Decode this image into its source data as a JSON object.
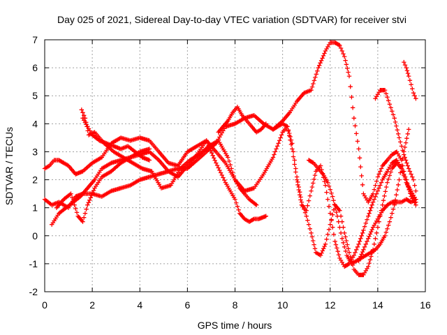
{
  "chart_data": {
    "type": "scatter",
    "title": "Day 025 of 2021, Sidereal Day-to-day VTEC variation (SDTVAR) for receiver stvi",
    "xlabel": "GPS time / hours",
    "ylabel": "SDTVAR / TECUs",
    "xlim": [
      0,
      16
    ],
    "ylim": [
      -2,
      7
    ],
    "x_ticks": [
      0,
      2,
      4,
      6,
      8,
      10,
      12,
      14,
      16
    ],
    "y_ticks": [
      -2,
      -1,
      0,
      1,
      2,
      3,
      4,
      5,
      6,
      7
    ],
    "x_tick_labels": [
      "0",
      "2",
      "4",
      "6",
      "8",
      "10",
      "12",
      "14",
      "16"
    ],
    "y_tick_labels": [
      "-2",
      "-1",
      "0",
      "1",
      "2",
      "3",
      "4",
      "5",
      "6",
      "7"
    ],
    "grid": true,
    "marker": "plus",
    "color": "#ff0000",
    "series": [
      {
        "x": [
          0.0,
          0.3,
          0.6,
          1.0,
          1.3,
          1.6,
          2.0,
          2.4,
          2.8,
          3.2,
          3.6,
          4.0,
          4.4,
          4.8,
          5.2,
          5.6,
          6.0,
          6.4,
          6.8,
          7.2,
          7.6,
          8.0,
          8.4,
          8.8,
          9.2,
          9.6,
          10.0,
          10.3,
          10.6,
          10.9,
          11.2,
          11.5,
          11.8,
          12.0,
          12.2,
          12.4,
          12.6,
          12.8,
          13.0,
          13.2,
          13.4,
          13.6,
          13.8,
          14.0,
          14.2,
          14.4,
          14.6,
          14.8,
          15.0,
          15.2,
          15.4,
          15.6
        ],
        "y": [
          1.3,
          1.1,
          1.2,
          1.0,
          1.4,
          1.5,
          1.5,
          1.4,
          1.6,
          1.7,
          1.8,
          2.0,
          2.1,
          2.2,
          2.3,
          2.4,
          2.4,
          2.7,
          3.0,
          3.3,
          3.9,
          4.0,
          4.2,
          4.3,
          4.0,
          3.8,
          4.1,
          4.4,
          4.8,
          5.1,
          5.2,
          6.0,
          6.6,
          6.9,
          6.9,
          6.8,
          6.4,
          5.7,
          4.2,
          3.1,
          1.5,
          1.2,
          1.5,
          2.1,
          2.5,
          2.7,
          2.9,
          3.0,
          2.7,
          1.9,
          1.6,
          1.3
        ]
      },
      {
        "x": [
          0.0,
          0.2,
          0.4,
          0.6,
          0.8,
          1.0,
          1.3,
          1.6,
          2.0,
          2.4,
          2.8,
          3.2,
          3.6,
          4.0,
          4.4,
          4.8,
          5.2,
          5.6,
          6.0,
          6.4,
          6.8,
          7.2,
          7.6,
          8.0,
          8.4,
          8.8,
          9.2,
          9.6,
          10.0,
          10.2,
          10.4,
          10.6,
          10.8,
          11.0,
          11.2,
          11.4,
          11.6,
          11.8,
          12.0,
          12.2,
          12.4,
          12.6,
          12.8,
          13.0,
          13.2,
          13.4,
          13.6,
          13.8,
          14.0,
          14.2,
          14.4,
          14.6,
          14.8,
          15.0,
          15.2,
          15.4,
          15.6
        ],
        "y": [
          2.4,
          2.5,
          2.7,
          2.7,
          2.6,
          2.5,
          2.2,
          2.3,
          2.6,
          2.8,
          3.3,
          3.5,
          3.4,
          3.5,
          3.4,
          3.0,
          2.6,
          2.5,
          3.0,
          3.2,
          3.4,
          3.0,
          2.6,
          2.0,
          1.6,
          1.7,
          2.2,
          2.8,
          3.7,
          3.9,
          3.3,
          2.1,
          1.2,
          0.7,
          0.1,
          -0.6,
          -0.7,
          -0.3,
          0.4,
          1.1,
          0.9,
          0.1,
          -0.6,
          -1.2,
          -1.4,
          -1.4,
          -1.1,
          -0.5,
          0.3,
          1.1,
          1.9,
          2.4,
          2.6,
          2.4,
          2.0,
          1.4,
          1.1
        ]
      },
      {
        "x": [
          0.3,
          0.6,
          0.9,
          1.2,
          1.5,
          1.8,
          2.1,
          2.4,
          2.8,
          3.2,
          3.6,
          4.0,
          4.4,
          4.8,
          5.2,
          5.6,
          6.0,
          6.4,
          6.8,
          7.2,
          7.6,
          8.0,
          8.2,
          8.4,
          8.6,
          8.8,
          9.0,
          9.3
        ],
        "y": [
          0.4,
          0.8,
          1.0,
          1.2,
          1.4,
          1.7,
          2.0,
          2.4,
          2.6,
          2.7,
          2.8,
          2.9,
          3.0,
          2.7,
          2.3,
          2.1,
          2.5,
          2.9,
          3.4,
          2.6,
          1.9,
          1.3,
          0.8,
          0.6,
          0.5,
          0.6,
          0.6,
          0.7
        ]
      },
      {
        "x": [
          1.55,
          1.7,
          1.85,
          2.1,
          2.5,
          2.9,
          3.3,
          3.7,
          4.1,
          4.5,
          4.9,
          5.3,
          5.7,
          6.1,
          6.5,
          6.9,
          7.3,
          7.7,
          8.0,
          8.2,
          8.4,
          8.6,
          8.9
        ],
        "y": [
          4.5,
          4.2,
          3.6,
          3.7,
          3.3,
          3.0,
          2.8,
          2.6,
          2.4,
          2.3,
          1.7,
          1.8,
          2.4,
          2.7,
          2.9,
          3.2,
          3.4,
          2.8,
          2.0,
          1.7,
          1.5,
          1.3,
          1.1
        ]
      },
      {
        "x": [
          0.5,
          0.8,
          1.1,
          1.4,
          1.6,
          1.8,
          2.1,
          2.4,
          2.8,
          3.2,
          3.6,
          4.0,
          4.4
        ],
        "y": [
          1.0,
          1.3,
          1.5,
          0.7,
          0.5,
          1.1,
          1.7,
          2.1,
          2.3,
          2.6,
          2.8,
          3.0,
          3.1
        ]
      },
      {
        "x": [
          9.6,
          9.8,
          10.0,
          10.2,
          10.4,
          10.6,
          10.8,
          11.0,
          11.2,
          11.4,
          11.6,
          11.8,
          12.0,
          12.2,
          12.4,
          12.6,
          12.8,
          13.0,
          13.2,
          13.4,
          13.6,
          13.8,
          14.0,
          14.2,
          14.4,
          14.6,
          14.8,
          15.0,
          15.2,
          15.4,
          15.6
        ],
        "y": [
          3.8,
          3.9,
          4.0,
          3.9,
          3.1,
          2.0,
          1.1,
          0.9,
          1.6,
          2.3,
          2.5,
          1.8,
          0.8,
          -0.2,
          -0.8,
          -1.1,
          -1.0,
          -0.7,
          -0.3,
          0.2,
          0.7,
          1.2,
          1.6,
          2.0,
          2.3,
          2.6,
          2.7,
          2.4,
          1.9,
          1.5,
          1.2
        ]
      },
      {
        "x": [
          11.1,
          11.3,
          11.5,
          11.7,
          11.9,
          12.1,
          12.3,
          12.5,
          12.7,
          12.9,
          13.1,
          13.3,
          13.5,
          13.7,
          13.9,
          14.1,
          14.3,
          14.5,
          14.7,
          14.9,
          15.1,
          15.3
        ],
        "y": [
          2.7,
          2.6,
          2.4,
          2.2,
          1.9,
          1.4,
          0.7,
          -0.1,
          -0.7,
          -1.0,
          -0.9,
          -0.8,
          -0.7,
          -0.6,
          -0.5,
          -0.3,
          0.0,
          0.5,
          1.1,
          2.0,
          3.0,
          3.8
        ]
      },
      {
        "x": [
          13.9,
          14.1,
          14.3,
          14.5,
          14.7,
          14.9,
          15.1,
          15.3,
          15.5,
          15.6
        ],
        "y": [
          4.9,
          5.2,
          5.2,
          4.7,
          4.2,
          3.5,
          2.9,
          2.4,
          2.0,
          1.6
        ]
      },
      {
        "x": [
          15.1,
          15.2,
          15.3,
          15.4,
          15.5,
          15.6
        ],
        "y": [
          6.2,
          6.0,
          5.7,
          5.4,
          5.1,
          4.9
        ]
      },
      {
        "x": [
          13.2,
          13.4,
          13.6,
          13.8,
          14.0,
          14.2,
          14.4,
          14.6,
          14.8,
          15.0,
          15.2,
          15.4,
          15.6
        ],
        "y": [
          -0.9,
          -0.5,
          -0.1,
          0.3,
          0.6,
          0.9,
          1.1,
          1.2,
          1.2,
          1.2,
          1.3,
          1.2,
          1.3
        ]
      },
      {
        "x": [
          7.3,
          7.5,
          7.7,
          7.9,
          8.1,
          8.3,
          8.5,
          8.7,
          8.9,
          9.1,
          9.3
        ],
        "y": [
          3.7,
          3.9,
          4.1,
          4.4,
          4.6,
          4.3,
          4.1,
          3.9,
          3.7,
          3.8,
          4.0
        ]
      },
      {
        "x": [
          1.6,
          1.8,
          2.0,
          2.3,
          2.6,
          2.9,
          3.2,
          3.5,
          3.8,
          4.1,
          4.4
        ],
        "y": [
          4.2,
          3.9,
          3.6,
          3.4,
          3.3,
          3.2,
          3.1,
          3.2,
          3.0,
          2.8,
          2.7
        ]
      }
    ]
  }
}
